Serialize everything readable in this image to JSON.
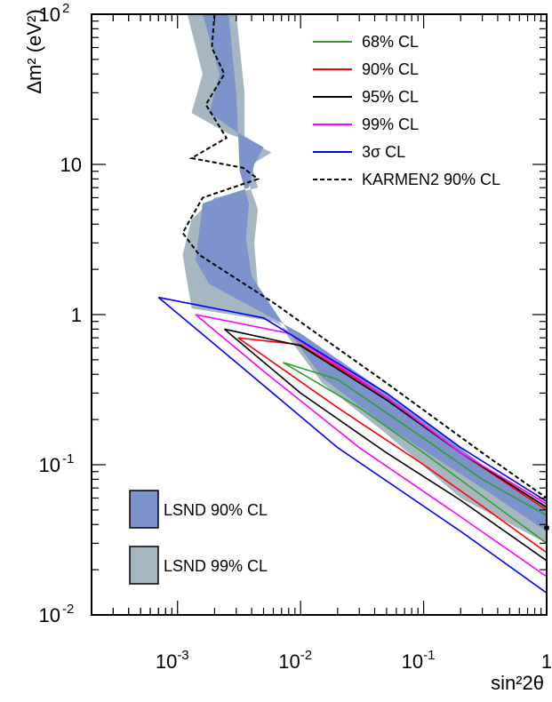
{
  "chart_data": {
    "type": "line",
    "title": "",
    "xlabel": "sin²2θ",
    "ylabel": "Δm² (eV²)",
    "xscale": "log",
    "yscale": "log",
    "xlim": [
      0.0002,
      1
    ],
    "ylim": [
      0.01,
      100
    ],
    "x_tick_labels": [
      {
        "value": 0.001,
        "base": "10",
        "exp": "-3"
      },
      {
        "value": 0.01,
        "base": "10",
        "exp": "-2"
      },
      {
        "value": 0.1,
        "base": "10",
        "exp": "-1"
      },
      {
        "value": 1,
        "base": "1",
        "exp": ""
      }
    ],
    "y_tick_labels": [
      {
        "value": 0.01,
        "base": "10",
        "exp": "-2"
      },
      {
        "value": 0.1,
        "base": "10",
        "exp": "-1"
      },
      {
        "value": 1,
        "base": "1",
        "exp": ""
      },
      {
        "value": 10,
        "base": "10",
        "exp": ""
      },
      {
        "value": 100,
        "base": "10",
        "exp": "2"
      }
    ],
    "grid": false,
    "legend_position": "top-right",
    "series": [
      {
        "name": "68% CL",
        "color": "#2ca02c",
        "style": "solid",
        "lower": [
          [
            0.0072,
            0.48
          ],
          [
            0.03,
            0.24
          ],
          [
            0.1,
            0.12
          ],
          [
            0.3,
            0.062
          ],
          [
            1.0,
            0.03
          ]
        ],
        "upper": [
          [
            0.0072,
            0.48
          ],
          [
            0.02,
            0.37
          ],
          [
            0.1,
            0.15
          ],
          [
            0.3,
            0.08
          ],
          [
            1.0,
            0.046
          ]
        ]
      },
      {
        "name": "90% CL",
        "color": "#ff0000",
        "style": "solid",
        "lower": [
          [
            0.0031,
            0.7
          ],
          [
            0.02,
            0.24
          ],
          [
            0.1,
            0.1
          ],
          [
            0.3,
            0.053
          ],
          [
            1.0,
            0.026
          ]
        ],
        "upper": [
          [
            0.0031,
            0.7
          ],
          [
            0.01,
            0.63
          ],
          [
            0.05,
            0.28
          ],
          [
            0.2,
            0.12
          ],
          [
            1.0,
            0.05
          ]
        ]
      },
      {
        "name": "95% CL",
        "color": "#000000",
        "style": "solid",
        "lower": [
          [
            0.0024,
            0.8
          ],
          [
            0.01,
            0.3
          ],
          [
            0.05,
            0.12
          ],
          [
            0.2,
            0.058
          ],
          [
            1.0,
            0.023
          ]
        ],
        "upper": [
          [
            0.0024,
            0.8
          ],
          [
            0.01,
            0.62
          ],
          [
            0.05,
            0.27
          ],
          [
            0.2,
            0.12
          ],
          [
            1.0,
            0.052
          ]
        ]
      },
      {
        "name": "99% CL",
        "color": "#ff00ff",
        "style": "solid",
        "lower": [
          [
            0.0014,
            1.0
          ],
          [
            0.005,
            0.42
          ],
          [
            0.03,
            0.13
          ],
          [
            0.2,
            0.045
          ],
          [
            1.0,
            0.018
          ]
        ],
        "upper": [
          [
            0.0014,
            1.0
          ],
          [
            0.008,
            0.75
          ],
          [
            0.05,
            0.28
          ],
          [
            0.2,
            0.12
          ],
          [
            1.0,
            0.055
          ]
        ]
      },
      {
        "name": "3σ CL",
        "color": "#0000ff",
        "style": "solid",
        "lower": [
          [
            0.0007,
            1.3
          ],
          [
            0.003,
            0.48
          ],
          [
            0.02,
            0.13
          ],
          [
            0.2,
            0.036
          ],
          [
            1.0,
            0.014
          ]
        ],
        "upper": [
          [
            0.0007,
            1.3
          ],
          [
            0.005,
            0.95
          ],
          [
            0.05,
            0.3
          ],
          [
            0.2,
            0.13
          ],
          [
            1.0,
            0.057
          ]
        ]
      },
      {
        "name": "KARMEN2 90% CL",
        "color": "#000000",
        "style": "dashed",
        "points": [
          [
            0.002,
            100
          ],
          [
            0.0019,
            60
          ],
          [
            0.0024,
            40
          ],
          [
            0.0017,
            25
          ],
          [
            0.0025,
            15
          ],
          [
            0.0013,
            11
          ],
          [
            0.0034,
            9.5
          ],
          [
            0.0045,
            8
          ],
          [
            0.0016,
            6
          ],
          [
            0.0011,
            3.5
          ],
          [
            0.0015,
            2.5
          ],
          [
            0.006,
            1.2
          ],
          [
            0.05,
            0.35
          ],
          [
            0.3,
            0.12
          ],
          [
            1.0,
            0.06
          ]
        ]
      }
    ],
    "regions": [
      {
        "name": "LSND 90% CL",
        "color": "#7d93cc"
      },
      {
        "name": "LSND 99% CL",
        "color": "#a7b7c2"
      }
    ],
    "point": {
      "x": 1.0,
      "y": 0.038
    }
  }
}
